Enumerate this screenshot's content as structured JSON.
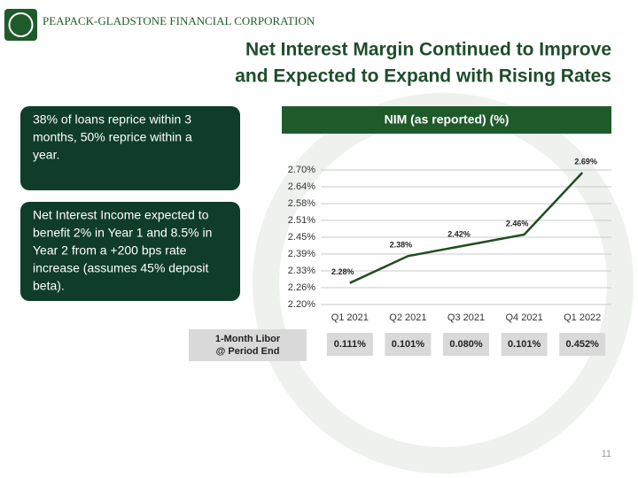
{
  "header": {
    "company": "PEAPACK-GLADSTONE FINANCIAL CORPORATION",
    "title_lines": [
      "Net Interest Margin Continued to Improve",
      "and Expected to Expand with Rising Rates"
    ]
  },
  "callouts": [
    {
      "lines": [
        "38% of loans reprice within 3",
        "months, 50% reprice within a",
        "year."
      ]
    },
    {
      "lines": [
        "Net Interest Income expected to",
        "benefit 2% in Year 1 and 8.5% in",
        "Year 2 from a +200 bps rate",
        "increase (assumes 45% deposit",
        "beta)."
      ]
    }
  ],
  "chart_data": {
    "type": "line",
    "title": "NIM (as reported) (%)",
    "categories": [
      "Q1 2021",
      "Q2 2021",
      "Q3 2021",
      "Q4 2021",
      "Q1 2022"
    ],
    "values": [
      2.28,
      2.38,
      2.42,
      2.46,
      2.69
    ],
    "value_labels": [
      "2.28%",
      "2.38%",
      "2.42%",
      "2.46%",
      "2.69%"
    ],
    "color": "#1f4d1f",
    "ylim": [
      2.2,
      2.7
    ],
    "yticks": [
      {
        "value": 2.2,
        "label": "2.20%"
      },
      {
        "value": 2.2625,
        "label": "2.26%"
      },
      {
        "value": 2.325,
        "label": "2.33%"
      },
      {
        "value": 2.3875,
        "label": "2.39%"
      },
      {
        "value": 2.45,
        "label": "2.45%"
      },
      {
        "value": 2.5125,
        "label": "2.51%"
      },
      {
        "value": 2.575,
        "label": "2.58%"
      },
      {
        "value": 2.6375,
        "label": "2.64%"
      },
      {
        "value": 2.7,
        "label": "2.70%"
      }
    ],
    "grid": true
  },
  "libor": {
    "label_lines": [
      "1-Month Libor",
      "@ Period End"
    ],
    "values": [
      "0.111%",
      "0.101%",
      "0.080%",
      "0.101%",
      "0.452%"
    ]
  },
  "page_number": 11
}
